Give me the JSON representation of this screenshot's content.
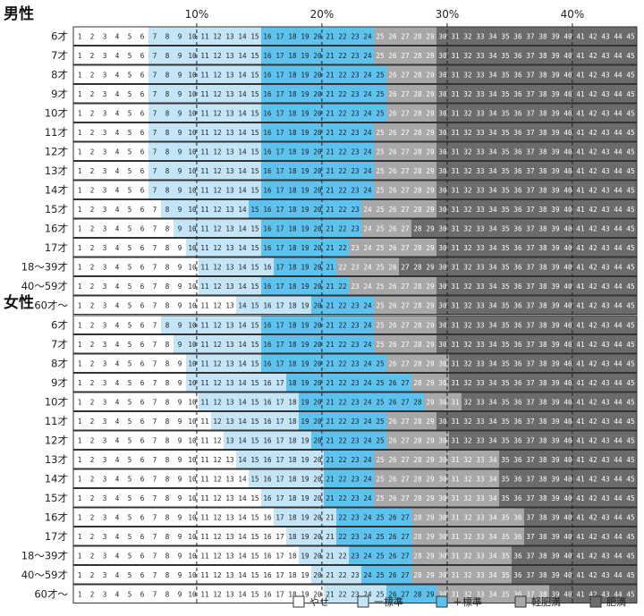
{
  "legend": [
    {
      "key": "yase",
      "label": "やせ",
      "color": "#ffffff"
    },
    {
      "key": "minus_std",
      "label": "一標準",
      "color": "#c4e5f7"
    },
    {
      "key": "plus_std",
      "label": "＋標準",
      "color": "#5ec2ef"
    },
    {
      "key": "light_obese",
      "label": "軽肥満",
      "color": "#a8a8aa"
    },
    {
      "key": "obese",
      "label": "肥満",
      "color": "#6b6b6d"
    }
  ],
  "text_colors": {
    "yase": "#222222",
    "minus_std": "#222222",
    "plus_std": "#222222",
    "light_obese": "#ffffff",
    "obese": "#ffffff"
  },
  "chart_data": {
    "type": "table",
    "cells_per_row": 45,
    "numbers": [
      1,
      2,
      3,
      4,
      5,
      6,
      7,
      8,
      9,
      10,
      11,
      12,
      13,
      14,
      15,
      16,
      17,
      18,
      19,
      20,
      21,
      22,
      23,
      24,
      25,
      26,
      27,
      28,
      29,
      30,
      31,
      32,
      33,
      34,
      35,
      36,
      37,
      38,
      39,
      40,
      41,
      42,
      43,
      44,
      45
    ],
    "x_axis_labels": [
      "10%",
      "20%",
      "30%",
      "40%"
    ],
    "x_axis_values": [
      10,
      20,
      30,
      40
    ],
    "band_order": [
      "yase",
      "minus_std",
      "plus_std",
      "light_obese",
      "obese"
    ],
    "note": "Each row: first cell number of minus_std, plus_std, light_obese, obese bands.",
    "sections": [
      {
        "title": "男性",
        "rows": [
          {
            "age": "6才",
            "starts": [
              7,
              16,
              25,
              30
            ]
          },
          {
            "age": "7才",
            "starts": [
              7,
              16,
              25,
              30
            ]
          },
          {
            "age": "8才",
            "starts": [
              7,
              16,
              26,
              30
            ]
          },
          {
            "age": "9才",
            "starts": [
              7,
              16,
              26,
              30
            ]
          },
          {
            "age": "10才",
            "starts": [
              7,
              16,
              26,
              30
            ]
          },
          {
            "age": "11才",
            "starts": [
              7,
              16,
              25,
              30
            ]
          },
          {
            "age": "12才",
            "starts": [
              7,
              16,
              25,
              30
            ]
          },
          {
            "age": "13才",
            "starts": [
              7,
              16,
              25,
              30
            ]
          },
          {
            "age": "14才",
            "starts": [
              7,
              16,
              25,
              30
            ]
          },
          {
            "age": "15才",
            "starts": [
              8,
              15,
              24,
              30
            ]
          },
          {
            "age": "16才",
            "starts": [
              9,
              16,
              24,
              28
            ]
          },
          {
            "age": "17才",
            "starts": [
              10,
              16,
              23,
              30
            ]
          },
          {
            "age": "18〜39才",
            "starts": [
              11,
              17,
              22,
              27
            ]
          },
          {
            "age": "40〜59才",
            "starts": [
              11,
              16,
              23,
              30
            ]
          },
          {
            "age": "60才〜",
            "starts": [
              14,
              20,
              25,
              30
            ]
          }
        ]
      },
      {
        "title": "女性",
        "rows": [
          {
            "age": "6才",
            "starts": [
              8,
              16,
              25,
              30
            ]
          },
          {
            "age": "7才",
            "starts": [
              9,
              16,
              25,
              30
            ]
          },
          {
            "age": "8才",
            "starts": [
              10,
              16,
              26,
              31
            ]
          },
          {
            "age": "9才",
            "starts": [
              10,
              18,
              28,
              31
            ]
          },
          {
            "age": "10才",
            "starts": [
              11,
              19,
              29,
              32
            ]
          },
          {
            "age": "11才",
            "starts": [
              12,
              19,
              26,
              30
            ]
          },
          {
            "age": "12才",
            "starts": [
              13,
              20,
              26,
              31
            ]
          },
          {
            "age": "13才",
            "starts": [
              14,
              21,
              25,
              35
            ]
          },
          {
            "age": "14才",
            "starts": [
              15,
              21,
              25,
              35
            ]
          },
          {
            "age": "15才",
            "starts": [
              16,
              21,
              25,
              35
            ]
          },
          {
            "age": "16才",
            "starts": [
              17,
              22,
              28,
              37
            ]
          },
          {
            "age": "17才",
            "starts": [
              18,
              22,
              28,
              37
            ]
          },
          {
            "age": "18〜39才",
            "starts": [
              19,
              23,
              28,
              36
            ]
          },
          {
            "age": "40〜59才",
            "starts": [
              20,
              24,
              28,
              36
            ]
          },
          {
            "age": "60才〜",
            "starts": [
              21,
              26,
              30,
              39
            ]
          }
        ]
      }
    ]
  }
}
